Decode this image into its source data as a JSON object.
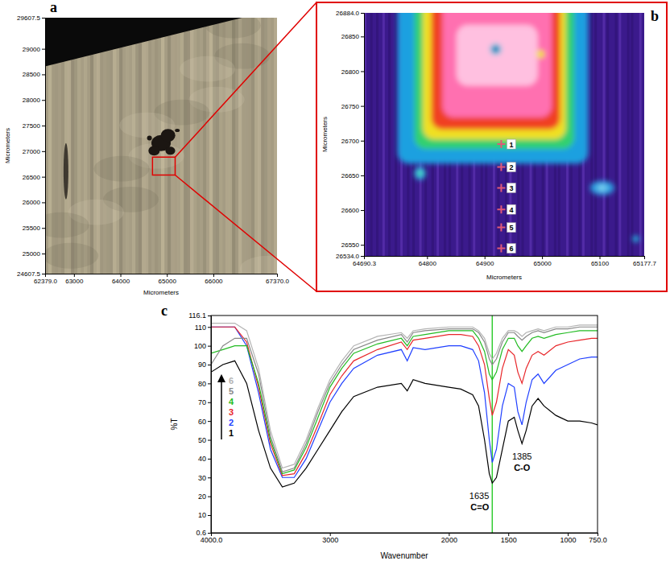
{
  "chart_data": [
    {
      "panel": "a",
      "type": "image",
      "x_label": "Micrometers",
      "y_label": "Micrometers",
      "xlim": [
        62379,
        67370
      ],
      "ylim": [
        24607.5,
        29607.5
      ],
      "xticks": [
        {
          "value": 62379,
          "label": "62379.0"
        },
        63000,
        64000,
        65000,
        66000,
        {
          "value": 67370,
          "label": "67370.0"
        }
      ],
      "yticks": [
        24607.5,
        25000,
        25500,
        26000,
        26500,
        27000,
        27500,
        28000,
        28500,
        29000,
        29607.5
      ]
    },
    {
      "panel": "b",
      "type": "map",
      "x_label": "Micrometers",
      "y_label": "Micrometers",
      "xlim": [
        64690.3,
        65177.7
      ],
      "ylim": [
        26534,
        26884
      ],
      "xticks": [
        64690.3,
        64800,
        64900,
        65000,
        65100,
        65177.7
      ],
      "yticks": [
        {
          "value": 26534,
          "label": "26534.0"
        },
        26550,
        26600,
        26650,
        26700,
        26750,
        26800,
        26850,
        {
          "value": 26884,
          "label": "26884.0"
        }
      ],
      "marker": "cross",
      "points": {
        "labels": [
          "1",
          "2",
          "3",
          "4",
          "5",
          "6"
        ],
        "x": [
          64929,
          64929,
          64929,
          64929,
          64929,
          64929
        ],
        "y": [
          26695,
          26662,
          26632,
          26601,
          26575,
          26545
        ]
      }
    },
    {
      "panel": "c",
      "type": "line",
      "x_label": "Wavenumber",
      "y_label": "%T",
      "xlim": [
        4000,
        750
      ],
      "ylim": [
        0.6,
        116.1
      ],
      "xticks": [
        {
          "value": 4000,
          "label": "4000.0"
        },
        3000,
        2000,
        1500,
        1000,
        {
          "value": 750,
          "label": "750.0"
        }
      ],
      "yticks": [
        0.6,
        10,
        20,
        30,
        40,
        50,
        60,
        70,
        80,
        90,
        100,
        110,
        116.1
      ],
      "legend": "left",
      "x": [
        4000,
        3900,
        3800,
        3700,
        3600,
        3500,
        3400,
        3300,
        3200,
        3100,
        3000,
        2900,
        2800,
        2600,
        2400,
        2350,
        2300,
        2200,
        2000,
        1900,
        1800,
        1750,
        1700,
        1660,
        1635,
        1600,
        1550,
        1500,
        1450,
        1420,
        1385,
        1350,
        1300,
        1250,
        1200,
        1100,
        1000,
        900,
        800,
        750
      ],
      "series": [
        {
          "name": "1",
          "color": "#000000",
          "values": [
            86,
            90,
            92,
            80,
            55,
            35,
            25,
            27,
            35,
            45,
            55,
            65,
            73,
            78,
            80,
            76,
            82,
            80,
            78,
            77,
            74,
            68,
            50,
            32,
            27,
            30,
            45,
            60,
            62,
            55,
            48,
            55,
            68,
            72,
            68,
            63,
            60,
            60,
            59,
            58
          ]
        },
        {
          "name": "2",
          "color": "#1f3fff",
          "values": [
            110,
            110,
            110,
            100,
            75,
            45,
            30,
            30,
            40,
            55,
            70,
            80,
            88,
            95,
            98,
            92,
            99,
            98,
            100,
            100,
            98,
            92,
            75,
            50,
            38,
            45,
            68,
            80,
            78,
            65,
            58,
            70,
            82,
            85,
            80,
            87,
            90,
            93,
            94,
            94
          ]
        },
        {
          "name": "3",
          "color": "#e8262a",
          "values": [
            110,
            110,
            110,
            102,
            78,
            48,
            31,
            32,
            43,
            58,
            74,
            84,
            92,
            98,
            102,
            98,
            103,
            104,
            106,
            106,
            105,
            100,
            90,
            72,
            63,
            70,
            88,
            98,
            95,
            86,
            80,
            88,
            95,
            97,
            95,
            100,
            102,
            103,
            104,
            104
          ]
        },
        {
          "name": "4",
          "color": "#22bb22",
          "values": [
            96,
            98,
            100,
            100,
            80,
            50,
            32,
            34,
            46,
            62,
            78,
            88,
            96,
            101,
            104,
            100,
            105,
            106,
            108,
            108,
            108,
            104,
            97,
            85,
            82,
            86,
            98,
            104,
            104,
            100,
            97,
            100,
            104,
            105,
            104,
            106,
            107,
            108,
            108,
            108
          ]
        },
        {
          "name": "5",
          "color": "#888888",
          "values": [
            90,
            100,
            104,
            104,
            85,
            52,
            33,
            35,
            48,
            65,
            80,
            90,
            98,
            103,
            106,
            102,
            107,
            108,
            109,
            109,
            109,
            107,
            102,
            93,
            90,
            93,
            102,
            107,
            107,
            105,
            103,
            105,
            107,
            108,
            107,
            109,
            109,
            110,
            110,
            110
          ]
        },
        {
          "name": "6",
          "color": "#b4b4b4",
          "values": [
            112,
            112,
            112,
            108,
            88,
            55,
            35,
            37,
            50,
            67,
            82,
            92,
            100,
            105,
            107,
            104,
            108,
            109,
            110,
            110,
            110,
            108,
            104,
            96,
            93,
            96,
            104,
            108,
            108,
            107,
            105,
            107,
            108,
            109,
            108,
            110,
            110,
            111,
            111,
            111
          ]
        }
      ],
      "reference_line": {
        "x": 1635,
        "color": "#33cc33"
      },
      "annotations": [
        {
          "x": 1635,
          "text": "1635",
          "bond": "C=O"
        },
        {
          "x": 1385,
          "text": "1385",
          "bond": "C-O"
        }
      ]
    }
  ]
}
